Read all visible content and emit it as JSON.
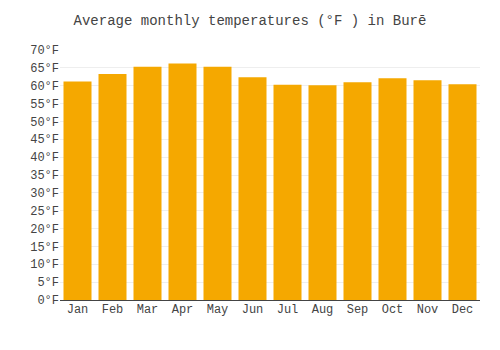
{
  "chart_data": {
    "type": "bar",
    "title": "Average monthly temperatures (°F ) in Burē",
    "categories": [
      "Jan",
      "Feb",
      "Mar",
      "Apr",
      "May",
      "Jun",
      "Jul",
      "Aug",
      "Sep",
      "Oct",
      "Nov",
      "Dec"
    ],
    "values": [
      61.2,
      63.3,
      65.3,
      66.2,
      65.3,
      62.4,
      60.3,
      60.1,
      61.0,
      62.1,
      61.5,
      60.4
    ],
    "color": "#F5A800",
    "ylim": [
      0,
      70
    ],
    "yticks": [
      {
        "value": 0,
        "label": "0°F"
      },
      {
        "value": 5,
        "label": "5°F"
      },
      {
        "value": 10,
        "label": "10°F"
      },
      {
        "value": 15,
        "label": "15°F"
      },
      {
        "value": 20,
        "label": "20°F"
      },
      {
        "value": 25,
        "label": "25°F"
      },
      {
        "value": 30,
        "label": "30°F"
      },
      {
        "value": 35,
        "label": "35°F"
      },
      {
        "value": 40,
        "label": "40°F"
      },
      {
        "value": 45,
        "label": "45°F"
      },
      {
        "value": 50,
        "label": "50°F"
      },
      {
        "value": 55,
        "label": "55°F"
      },
      {
        "value": 60,
        "label": "60°F"
      },
      {
        "value": 65,
        "label": "65°F"
      },
      {
        "value": 70,
        "label": "70°F"
      }
    ],
    "grid": true
  }
}
